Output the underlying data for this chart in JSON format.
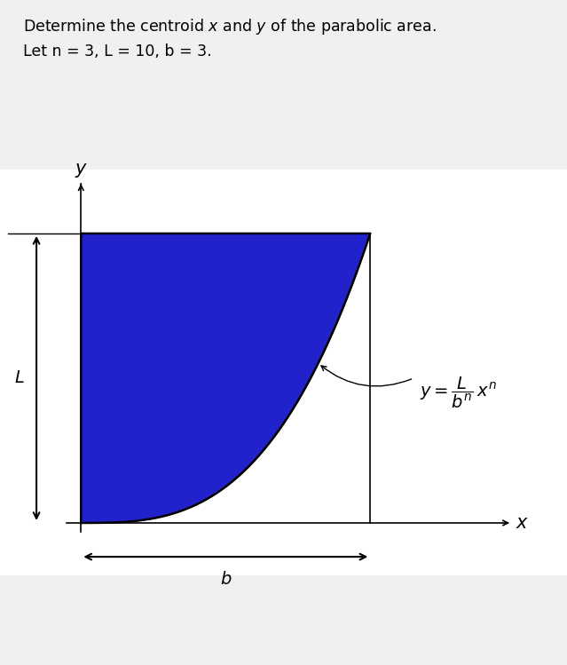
{
  "title_line1": "Determine the centroid $x$ and $y$ of the parabolic area.",
  "title_line2": "Let n = 3, L = 10, b = 3.",
  "n": 3,
  "L": 10,
  "b": 3,
  "fill_color": "#2222CC",
  "fill_edge_color": "#000000",
  "background_color": "#f0f0f0",
  "plot_bg_color": "#ffffff",
  "ylabel_text": "$y$",
  "xlabel_text": "$x$",
  "L_label": "$L$",
  "b_label": "$b$",
  "figsize": [
    6.39,
    7.49
  ],
  "dpi": 100
}
